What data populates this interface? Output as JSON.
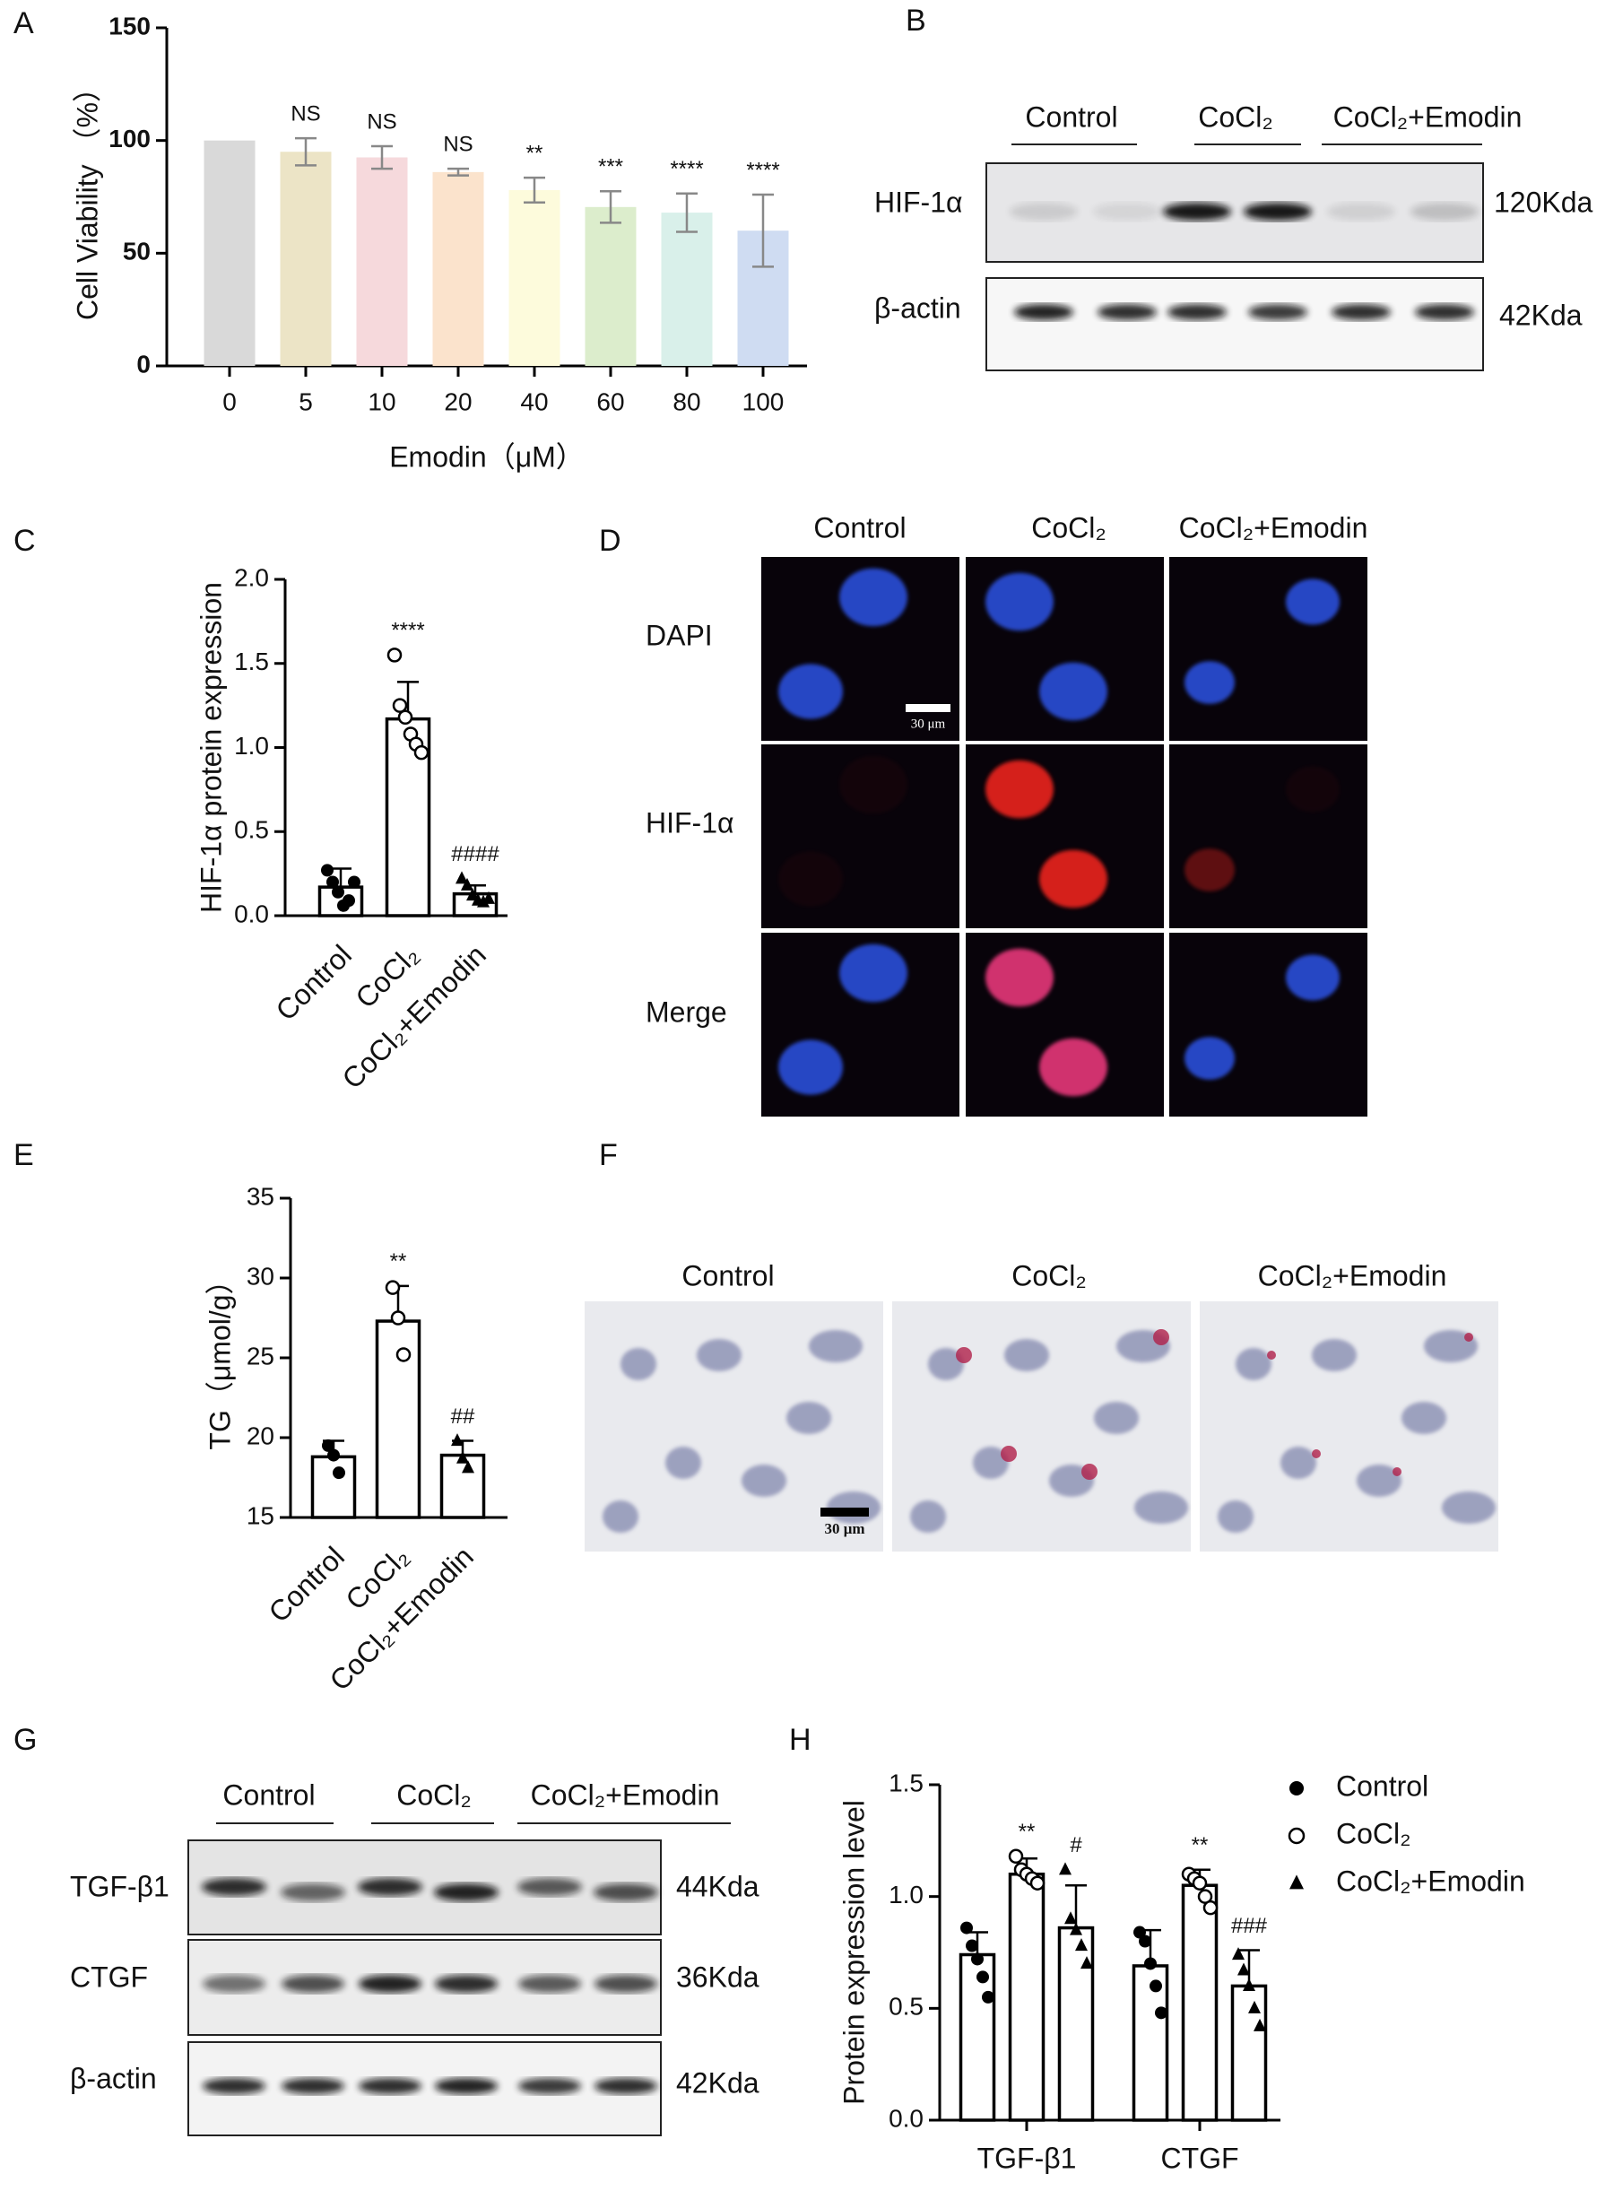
{
  "panel_labels": [
    "A",
    "B",
    "C",
    "D",
    "E",
    "F",
    "G",
    "H"
  ],
  "blot_b": {
    "groups": [
      "Control",
      "CoCl₂",
      "CoCl₂+Emodin"
    ],
    "rows": [
      {
        "label": "HIF-1α",
        "size": "120Kda"
      },
      {
        "label": "β-actin",
        "size": "42Kda"
      }
    ]
  },
  "if_d": {
    "columns": [
      "Control",
      "CoCl₂",
      "CoCl₂+Emodin"
    ],
    "rows": [
      "DAPI",
      "HIF-1α",
      "Merge"
    ],
    "scale_bar": "30 μm"
  },
  "oro_f": {
    "columns": [
      "Control",
      "CoCl₂",
      "CoCl₂+Emodin"
    ],
    "scale_bar": "30 μm"
  },
  "blot_g": {
    "groups": [
      "Control",
      "CoCl₂",
      "CoCl₂+Emodin"
    ],
    "rows": [
      {
        "label": "TGF-β1",
        "size": "44Kda"
      },
      {
        "label": "CTGF",
        "size": "36Kda"
      },
      {
        "label": "β-actin",
        "size": "42Kda"
      }
    ]
  },
  "chart_data": [
    {
      "type": "bar",
      "ylabel": "Cell Viability （%）",
      "xlabel": "Emodin（μM）",
      "categories": [
        "0",
        "5",
        "10",
        "20",
        "40",
        "60",
        "80",
        "100"
      ],
      "values": [
        100,
        95,
        92.5,
        86,
        78,
        70.5,
        68,
        60
      ],
      "errors": [
        0,
        6,
        5,
        1.5,
        5.5,
        7,
        8.5,
        16
      ],
      "colors": [
        "#d9d9d9",
        "#ece4c6",
        "#f6d9dc",
        "#fbe3cc",
        "#fdfbdc",
        "#dcedcc",
        "#d9f0ea",
        "#cfdcf2"
      ],
      "annotations": [
        null,
        "NS",
        "NS",
        "NS",
        "**",
        "***",
        "****",
        "****"
      ],
      "ylim": [
        0,
        150
      ],
      "yticks": [
        0,
        50,
        100,
        150
      ]
    },
    {
      "type": "bar",
      "ylabel": "HIF-1α protein expression",
      "categories": [
        "Control",
        "CoCl₂",
        "CoCl₂+Emodin"
      ],
      "values": [
        0.17,
        1.17,
        0.13
      ],
      "errors": [
        0.11,
        0.22,
        0.05
      ],
      "points": [
        [
          0.27,
          0.2,
          0.14,
          0.06,
          0.09,
          0.2
        ],
        [
          1.55,
          1.25,
          1.18,
          1.08,
          1.02,
          0.97
        ],
        [
          0.22,
          0.18,
          0.12,
          0.09,
          0.08,
          0.1
        ]
      ],
      "markers": [
        "dot",
        "circle",
        "triangle"
      ],
      "annotations": [
        null,
        "****",
        "####"
      ],
      "ylim": [
        0,
        2
      ],
      "yticks": [
        {
          "value": 0,
          "label": "0.0"
        },
        {
          "value": 0.5,
          "label": "0.5"
        },
        {
          "value": 1,
          "label": "1.0"
        },
        {
          "value": 1.5,
          "label": "1.5"
        },
        {
          "value": 2,
          "label": "2.0"
        }
      ]
    },
    {
      "type": "bar",
      "ylabel": "TG（μmol/g）",
      "categories": [
        "Control",
        "CoCl₂",
        "CoCl₂+Emodin"
      ],
      "values": [
        18.8,
        27.3,
        18.9
      ],
      "errors": [
        1,
        2.2,
        0.9
      ],
      "points": [
        [
          19.5,
          18.9,
          17.8
        ],
        [
          29.4,
          27.5,
          25.2
        ],
        [
          19.8,
          18.7,
          18.1
        ]
      ],
      "markers": [
        "dot",
        "circle",
        "triangle"
      ],
      "annotations": [
        null,
        "**",
        "##"
      ],
      "ylim": [
        15,
        35
      ],
      "yticks": [
        15,
        20,
        25,
        30,
        35
      ]
    },
    {
      "type": "grouped-bar",
      "ylabel": "Protein expression level",
      "categories": [
        "TGF-β1",
        "CTGF"
      ],
      "legend": "right",
      "series": [
        {
          "name": "Control",
          "marker": "dot",
          "values": [
            0.74,
            0.69
          ],
          "errors": [
            0.1,
            0.16
          ],
          "points": [
            [
              0.86,
              0.78,
              0.72,
              0.64,
              0.55
            ],
            [
              0.84,
              0.8,
              0.7,
              0.6,
              0.48
            ]
          ],
          "annotations": [
            null,
            null
          ]
        },
        {
          "name": "CoCl₂",
          "marker": "circle",
          "values": [
            1.1,
            1.05
          ],
          "errors": [
            0.07,
            0.07
          ],
          "points": [
            [
              1.18,
              1.12,
              1.1,
              1.08,
              1.06
            ],
            [
              1.1,
              1.08,
              1.06,
              1.0,
              0.95
            ]
          ],
          "annotations": [
            "**",
            "**"
          ]
        },
        {
          "name": "CoCl₂+Emodin",
          "marker": "triangle",
          "values": [
            0.86,
            0.6
          ],
          "errors": [
            0.19,
            0.16
          ],
          "points": [
            [
              1.12,
              0.9,
              0.85,
              0.78,
              0.7
            ],
            [
              0.74,
              0.67,
              0.6,
              0.5,
              0.42
            ]
          ],
          "annotations": [
            "#",
            "###"
          ]
        }
      ],
      "ylim": [
        0,
        1.5
      ],
      "yticks": [
        {
          "value": 0,
          "label": "0.0"
        },
        {
          "value": 0.5,
          "label": "0.5"
        },
        {
          "value": 1,
          "label": "1.0"
        },
        {
          "value": 1.5,
          "label": "1.5"
        }
      ]
    }
  ]
}
